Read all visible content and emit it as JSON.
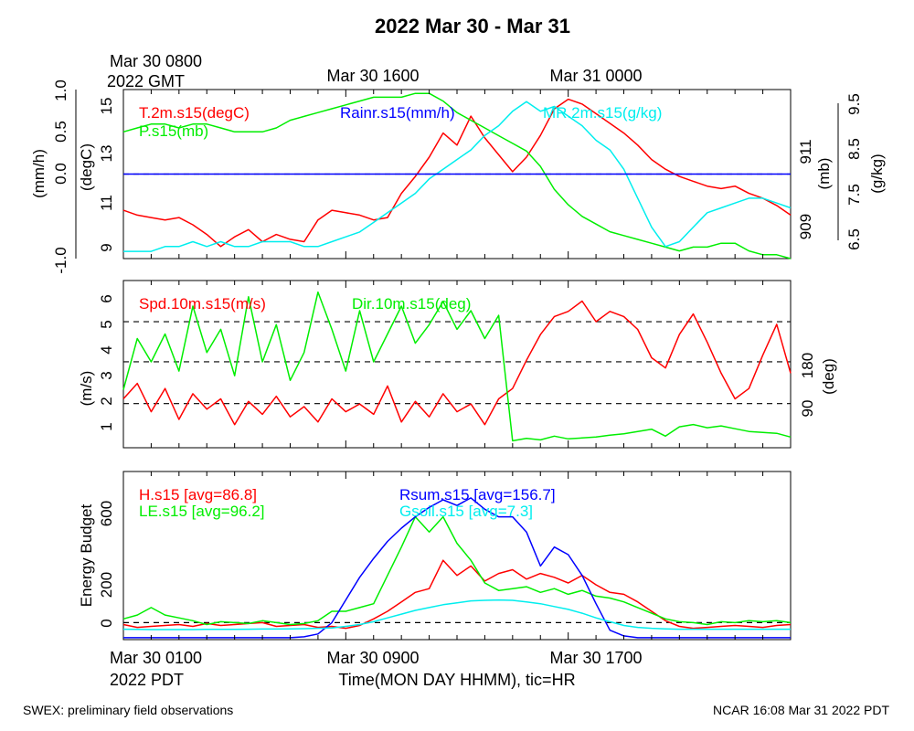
{
  "title": "2022 Mar 30 - Mar 31",
  "top_axis": {
    "start_label_line1": "Mar 30 0800",
    "start_label_line2": "2022 GMT",
    "tick_labels": [
      {
        "hour": 8,
        "label": "Mar 30 1600"
      },
      {
        "hour": 16,
        "label": "Mar 31 0000"
      }
    ]
  },
  "bottom_axis": {
    "start_label_line1": "Mar 30 0100",
    "start_label_line2": "2022 PDT",
    "tick_labels": [
      {
        "hour": 8,
        "label": "Mar 30 0900"
      },
      {
        "hour": 16,
        "label": "Mar 30 1700"
      }
    ],
    "xlabel": "Time(MON DAY HHMM), tic=HR"
  },
  "footer_left": "SWEX: preliminary field observations",
  "footer_right": "NCAR 16:08 Mar 31 2022 PDT",
  "colors": {
    "red": "#ff0000",
    "green": "#00ee00",
    "blue": "#0000ff",
    "cyan": "#00eeee",
    "black": "#000000"
  },
  "chart_data": [
    {
      "type": "line",
      "panel": "top",
      "xlim": [
        0,
        24
      ],
      "axes": {
        "rain": {
          "label": "(mm/h)",
          "ylim": [
            -1.0,
            1.0
          ],
          "ticks": [
            "-1.0",
            "0.0",
            "0.5",
            "1.0"
          ]
        },
        "temp": {
          "label": "(degC)",
          "ylim": [
            8.6,
            15.6
          ],
          "ticks": [
            "9",
            "11",
            "13",
            "15"
          ]
        },
        "pres": {
          "label": "(mb)",
          "ylim": [
            908.2,
            912.6
          ],
          "ticks": [
            "909",
            "911"
          ]
        },
        "mr": {
          "label": "(g/kg)",
          "ylim": [
            6.35,
            9.85
          ],
          "ticks": [
            "6.5",
            "7.5",
            "8.5",
            "9.5"
          ]
        }
      },
      "series": [
        {
          "name": "T.2m.s15(degC)",
          "color": "red",
          "axis": "temp",
          "x": [
            0,
            0.5,
            1,
            1.5,
            2,
            2.5,
            3,
            3.5,
            4,
            4.5,
            5,
            5.5,
            6,
            6.5,
            7,
            7.5,
            8,
            8.5,
            9,
            9.5,
            10,
            10.5,
            11,
            11.5,
            12,
            12.5,
            13,
            13.5,
            14,
            14.5,
            15,
            15.5,
            16,
            16.5,
            17,
            17.5,
            18,
            18.5,
            19,
            19.5,
            20,
            20.5,
            21,
            21.5,
            22,
            22.5,
            23,
            23.5,
            24
          ],
          "values": [
            10.6,
            10.4,
            10.3,
            10.2,
            10.3,
            10.0,
            9.6,
            9.1,
            9.5,
            9.8,
            9.3,
            9.6,
            9.4,
            9.3,
            10.2,
            10.6,
            10.5,
            10.4,
            10.2,
            10.3,
            11.3,
            12.0,
            12.8,
            13.8,
            13.3,
            14.5,
            13.6,
            12.9,
            12.2,
            12.8,
            13.7,
            14.8,
            15.2,
            15.0,
            14.6,
            14.2,
            13.8,
            13.3,
            12.7,
            12.3,
            12.0,
            11.8,
            11.6,
            11.5,
            11.6,
            11.3,
            11.1,
            10.8,
            10.4
          ]
        },
        {
          "name": "P.s15(mb)",
          "color": "green",
          "axis": "pres",
          "x": [
            0,
            0.5,
            1,
            1.5,
            2,
            2.5,
            3,
            3.5,
            4,
            4.5,
            5,
            5.5,
            6,
            6.5,
            7,
            7.5,
            8,
            8.5,
            9,
            9.5,
            10,
            10.5,
            11,
            11.5,
            12,
            12.5,
            13,
            13.5,
            14,
            14.5,
            15,
            15.5,
            16,
            16.5,
            17,
            17.5,
            18,
            18.5,
            19,
            19.5,
            20,
            20.5,
            21,
            21.5,
            22,
            22.5,
            23,
            23.5,
            24
          ],
          "values": [
            911.5,
            911.6,
            911.7,
            911.7,
            911.6,
            911.7,
            911.7,
            911.6,
            911.5,
            911.5,
            911.5,
            911.6,
            911.8,
            911.9,
            912.0,
            912.1,
            912.2,
            912.3,
            912.4,
            912.4,
            912.4,
            912.5,
            912.5,
            912.3,
            912.0,
            911.8,
            911.6,
            911.4,
            911.2,
            911.0,
            910.6,
            910.0,
            909.6,
            909.3,
            909.1,
            908.9,
            908.8,
            908.7,
            908.6,
            908.5,
            908.4,
            908.5,
            908.5,
            908.6,
            908.6,
            908.4,
            908.3,
            908.3,
            908.2
          ]
        },
        {
          "name": "MR.2m.s15(g/kg)",
          "color": "cyan",
          "axis": "mr",
          "x": [
            0,
            0.5,
            1,
            1.5,
            2,
            2.5,
            3,
            3.5,
            4,
            4.5,
            5,
            5.5,
            6,
            6.5,
            7,
            7.5,
            8,
            8.5,
            9,
            9.5,
            10,
            10.5,
            11,
            11.5,
            12,
            12.5,
            13,
            13.5,
            14,
            14.5,
            15,
            15.5,
            16,
            16.5,
            17,
            17.5,
            18,
            18.5,
            19,
            19.5,
            20,
            20.5,
            21,
            21.5,
            22,
            22.5,
            23,
            23.5,
            24
          ],
          "values": [
            6.5,
            6.5,
            6.5,
            6.6,
            6.6,
            6.7,
            6.6,
            6.7,
            6.6,
            6.6,
            6.7,
            6.7,
            6.7,
            6.6,
            6.6,
            6.7,
            6.8,
            6.9,
            7.1,
            7.3,
            7.5,
            7.7,
            8.0,
            8.2,
            8.4,
            8.6,
            8.9,
            9.1,
            9.4,
            9.6,
            9.4,
            9.5,
            9.3,
            9.1,
            8.8,
            8.6,
            8.2,
            7.6,
            7.0,
            6.6,
            6.7,
            7.0,
            7.3,
            7.4,
            7.5,
            7.6,
            7.6,
            7.5,
            7.4
          ]
        },
        {
          "name": "Rainr.s15(mm/h)",
          "color": "blue",
          "axis": "rain",
          "x": [
            0,
            24
          ],
          "values": [
            0.0,
            0.0
          ]
        }
      ],
      "ref_lines": [
        {
          "axis": "rain",
          "value": 0.0,
          "style": "dashed"
        }
      ]
    },
    {
      "type": "line",
      "panel": "middle",
      "xlim": [
        0,
        24
      ],
      "axes": {
        "spd": {
          "label": "(m/s)",
          "ylim": [
            0.1,
            6.6
          ],
          "ticks": [
            "1",
            "2",
            "3",
            "4",
            "5",
            "6"
          ]
        },
        "dir": {
          "label": "(deg)",
          "ylim": [
            -5,
            355
          ],
          "ticks": [
            "90",
            "180"
          ]
        }
      },
      "series": [
        {
          "name": "Spd.10m.s15(m/s)",
          "color": "red",
          "axis": "spd",
          "x": [
            0,
            0.5,
            1,
            1.5,
            2,
            2.5,
            3,
            3.5,
            4,
            4.5,
            5,
            5.5,
            6,
            6.5,
            7,
            7.5,
            8,
            8.5,
            9,
            9.5,
            10,
            10.5,
            11,
            11.5,
            12,
            12.5,
            13,
            13.5,
            14,
            14.5,
            15,
            15.5,
            16,
            16.5,
            17,
            17.5,
            18,
            18.5,
            19,
            19.5,
            20,
            20.5,
            21,
            21.5,
            22,
            22.5,
            23,
            23.5,
            24
          ],
          "values": [
            2.0,
            2.6,
            1.5,
            2.4,
            1.2,
            2.2,
            1.6,
            2.0,
            1.0,
            1.9,
            1.4,
            2.1,
            1.3,
            1.7,
            1.1,
            2.0,
            1.5,
            1.8,
            1.4,
            2.5,
            1.1,
            1.9,
            1.3,
            2.2,
            1.5,
            1.8,
            1.0,
            2.0,
            2.4,
            3.5,
            4.5,
            5.2,
            5.4,
            5.8,
            5.0,
            5.4,
            5.2,
            4.7,
            3.6,
            3.2,
            4.5,
            5.3,
            4.2,
            3.0,
            2.0,
            2.4,
            3.7,
            4.9,
            3.0
          ]
        },
        {
          "name": "Dir.10m.s15(deg)",
          "color": "green",
          "axis": "dir",
          "x": [
            0,
            0.5,
            1,
            1.5,
            2,
            2.5,
            3,
            3.5,
            4,
            4.5,
            5,
            5.5,
            6,
            6.5,
            7,
            7.5,
            8,
            8.5,
            9,
            9.5,
            10,
            10.5,
            11,
            11.5,
            12,
            12.5,
            13,
            13.5,
            14,
            14.5,
            15,
            15.5,
            16,
            16.5,
            17,
            17.5,
            18,
            18.5,
            19,
            19.5,
            20,
            20.5,
            21,
            21.5,
            22,
            22.5,
            23,
            23.5,
            24
          ],
          "values": [
            120,
            230,
            180,
            240,
            160,
            300,
            200,
            250,
            150,
            320,
            180,
            260,
            140,
            200,
            330,
            250,
            160,
            290,
            180,
            240,
            300,
            220,
            260,
            310,
            250,
            290,
            230,
            280,
            10,
            15,
            12,
            20,
            14,
            16,
            18,
            22,
            25,
            30,
            35,
            20,
            40,
            45,
            38,
            42,
            36,
            30,
            28,
            26,
            18
          ]
        }
      ],
      "ref_lines": [
        {
          "axis": "spd",
          "value": 5.0,
          "style": "dashed"
        },
        {
          "axis": "dir",
          "value": 180,
          "style": "dashed"
        },
        {
          "axis": "dir",
          "value": 90,
          "style": "dashed"
        }
      ]
    },
    {
      "type": "line",
      "panel": "bottom",
      "xlim": [
        0,
        24
      ],
      "ylabel": "Energy Budget",
      "ylim": [
        -90,
        800
      ],
      "ticks": [
        "0",
        "200",
        "600"
      ],
      "series": [
        {
          "name": "H.s15 [avg=86.8]",
          "color": "red",
          "x": [
            0,
            0.5,
            1,
            1.5,
            2,
            2.5,
            3,
            3.5,
            4,
            4.5,
            5,
            5.5,
            6,
            6.5,
            7,
            7.5,
            8,
            8.5,
            9,
            9.5,
            10,
            10.5,
            11,
            11.5,
            12,
            12.5,
            13,
            13.5,
            14,
            14.5,
            15,
            15.5,
            16,
            16.5,
            17,
            17.5,
            18,
            18.5,
            19,
            19.5,
            20,
            20.5,
            21,
            21.5,
            22,
            22.5,
            23,
            23.5,
            24
          ],
          "values": [
            -10,
            -25,
            -20,
            -15,
            -10,
            -20,
            -5,
            -15,
            -10,
            -5,
            0,
            -20,
            -15,
            -10,
            -25,
            -20,
            -30,
            -15,
            20,
            60,
            110,
            160,
            180,
            330,
            250,
            300,
            220,
            260,
            280,
            230,
            260,
            240,
            210,
            250,
            200,
            160,
            150,
            110,
            60,
            10,
            -20,
            -30,
            -25,
            -20,
            -15,
            -20,
            -25,
            -15,
            -10
          ]
        },
        {
          "name": "LE.s15 [avg=96.2]",
          "color": "green",
          "x": [
            0,
            0.5,
            1,
            1.5,
            2,
            2.5,
            3,
            3.5,
            4,
            4.5,
            5,
            5.5,
            6,
            6.5,
            7,
            7.5,
            8,
            8.5,
            9,
            9.5,
            10,
            10.5,
            11,
            11.5,
            12,
            12.5,
            13,
            13.5,
            14,
            14.5,
            15,
            15.5,
            16,
            16.5,
            17,
            17.5,
            18,
            18.5,
            19,
            19.5,
            20,
            20.5,
            21,
            21.5,
            22,
            22.5,
            23,
            23.5,
            24
          ],
          "values": [
            20,
            40,
            80,
            40,
            25,
            10,
            -10,
            5,
            0,
            -5,
            10,
            0,
            -10,
            -5,
            10,
            60,
            60,
            80,
            100,
            250,
            400,
            560,
            480,
            560,
            420,
            330,
            210,
            170,
            180,
            190,
            160,
            180,
            150,
            170,
            140,
            130,
            110,
            80,
            50,
            20,
            5,
            0,
            -10,
            5,
            0,
            10,
            5,
            10,
            0
          ]
        },
        {
          "name": "Rsum.s15 [avg=156.7]",
          "color": "blue",
          "x": [
            0,
            0.5,
            1,
            1.5,
            2,
            2.5,
            3,
            3.5,
            4,
            4.5,
            5,
            5.5,
            6,
            6.5,
            7,
            7.5,
            8,
            8.5,
            9,
            9.5,
            10,
            10.5,
            11,
            11.5,
            12,
            12.5,
            13,
            13.5,
            14,
            14.5,
            15,
            15.5,
            16,
            16.5,
            17,
            17.5,
            18,
            18.5,
            19,
            19.5,
            20,
            20.5,
            21,
            21.5,
            22,
            22.5,
            23,
            23.5,
            24
          ],
          "values": [
            -80,
            -80,
            -80,
            -80,
            -80,
            -80,
            -80,
            -80,
            -80,
            -80,
            -80,
            -80,
            -80,
            -75,
            -60,
            0,
            120,
            240,
            340,
            430,
            500,
            560,
            610,
            650,
            620,
            660,
            600,
            560,
            560,
            480,
            300,
            400,
            360,
            250,
            100,
            -40,
            -70,
            -80,
            -80,
            -80,
            -80,
            -80,
            -80,
            -80,
            -80,
            -80,
            -80,
            -80,
            -80
          ]
        },
        {
          "name": "Gsoil.s15 [avg=7.3]",
          "color": "cyan",
          "x": [
            0,
            0.5,
            1,
            1.5,
            2,
            2.5,
            3,
            3.5,
            4,
            4.5,
            5,
            5.5,
            6,
            6.5,
            7,
            7.5,
            8,
            8.5,
            9,
            9.5,
            10,
            10.5,
            11,
            11.5,
            12,
            12.5,
            13,
            13.5,
            14,
            14.5,
            15,
            15.5,
            16,
            16.5,
            17,
            17.5,
            18,
            18.5,
            19,
            19.5,
            20,
            20.5,
            21,
            21.5,
            22,
            22.5,
            23,
            23.5,
            24
          ],
          "values": [
            -35,
            -36,
            -37,
            -37,
            -37,
            -37,
            -36,
            -36,
            -36,
            -35,
            -34,
            -34,
            -33,
            -32,
            -30,
            -28,
            -20,
            -10,
            5,
            25,
            45,
            65,
            80,
            95,
            105,
            115,
            118,
            120,
            118,
            110,
            100,
            85,
            70,
            50,
            25,
            5,
            -15,
            -25,
            -30,
            -33,
            -35,
            -35,
            -35,
            -35,
            -35,
            -35,
            -35,
            -35,
            -35
          ]
        }
      ],
      "ref_lines": [
        {
          "value": 0,
          "style": "dashed"
        }
      ]
    }
  ]
}
